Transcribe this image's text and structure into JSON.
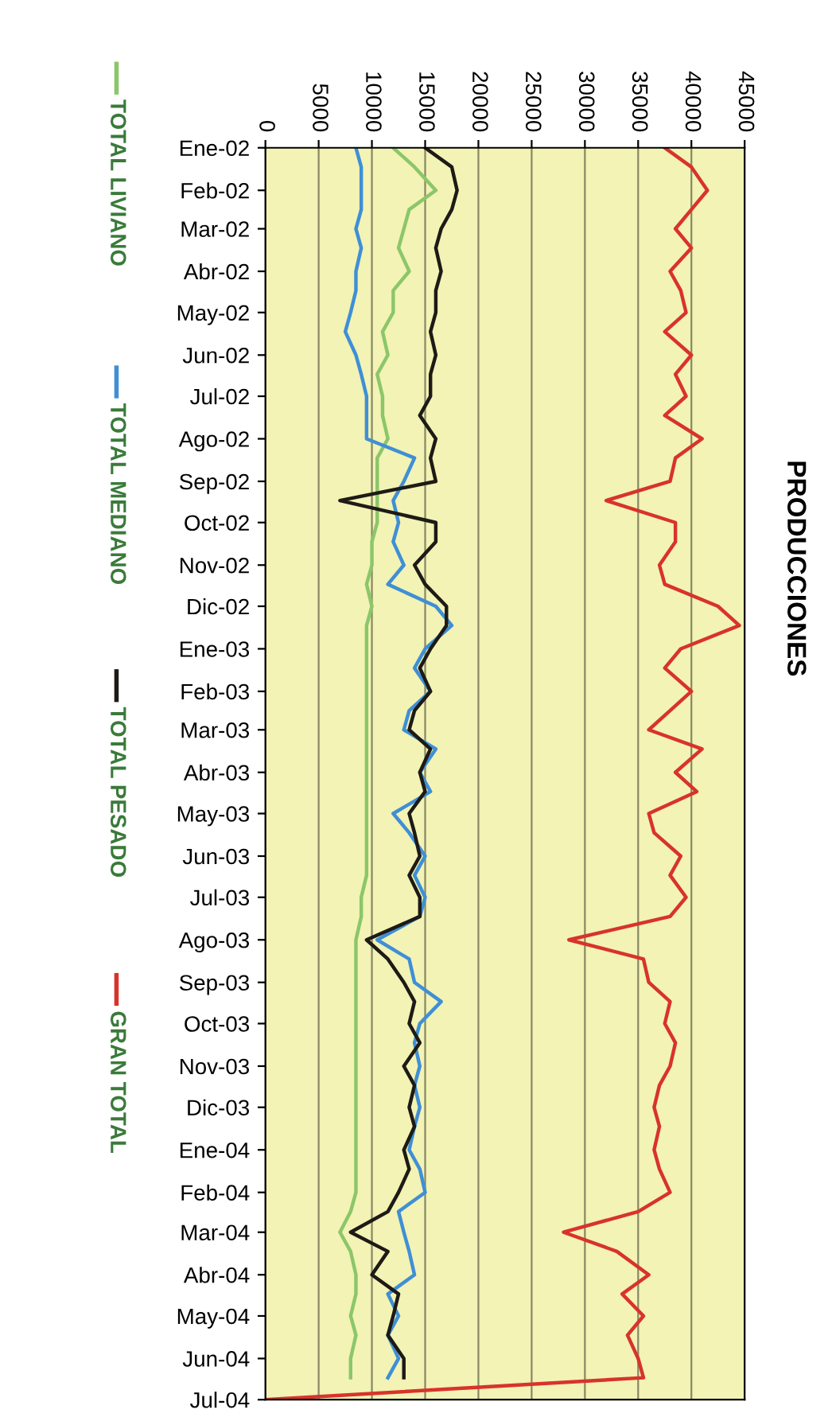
{
  "chart_data": {
    "type": "line",
    "title": "PRODUCCIONES",
    "orientation": "horizontal",
    "legend": "left",
    "grid": "x",
    "marker": "none",
    "line_style": "solid",
    "xlim": [
      0,
      45000
    ],
    "xticks": [
      0,
      5000,
      10000,
      15000,
      20000,
      25000,
      30000,
      35000,
      40000,
      45000
    ],
    "ylim": [
      "2004-07-01",
      "2002-01-01"
    ],
    "yticks": [
      {
        "value": "2002-01-01",
        "label": "Ene-02"
      },
      {
        "value": "2002-02-01",
        "label": "Feb-02"
      },
      {
        "value": "2002-03-01",
        "label": "Mar-02"
      },
      {
        "value": "2002-04-01",
        "label": "Abr-02"
      },
      {
        "value": "2002-05-01",
        "label": "May-02"
      },
      {
        "value": "2002-06-01",
        "label": "Jun-02"
      },
      {
        "value": "2002-07-01",
        "label": "Jul-02"
      },
      {
        "value": "2002-08-01",
        "label": "Ago-02"
      },
      {
        "value": "2002-09-01",
        "label": "Sep-02"
      },
      {
        "value": "2002-10-01",
        "label": "Oct-02"
      },
      {
        "value": "2002-11-01",
        "label": "Nov-02"
      },
      {
        "value": "2002-12-01",
        "label": "Dic-02"
      },
      {
        "value": "2003-01-01",
        "label": "Ene-03"
      },
      {
        "value": "2003-02-01",
        "label": "Feb-03"
      },
      {
        "value": "2003-03-01",
        "label": "Mar-03"
      },
      {
        "value": "2003-04-01",
        "label": "Abr-03"
      },
      {
        "value": "2003-05-01",
        "label": "May-03"
      },
      {
        "value": "2003-06-01",
        "label": "Jun-03"
      },
      {
        "value": "2003-07-01",
        "label": "Jul-03"
      },
      {
        "value": "2003-08-01",
        "label": "Ago-03"
      },
      {
        "value": "2003-09-01",
        "label": "Sep-03"
      },
      {
        "value": "2003-10-01",
        "label": "Oct-03"
      },
      {
        "value": "2003-11-01",
        "label": "Nov-03"
      },
      {
        "value": "2003-12-01",
        "label": "Dic-03"
      },
      {
        "value": "2004-01-01",
        "label": "Ene-04"
      },
      {
        "value": "2004-02-01",
        "label": "Feb-04"
      },
      {
        "value": "2004-03-01",
        "label": "Mar-04"
      },
      {
        "value": "2004-04-01",
        "label": "Abr-04"
      },
      {
        "value": "2004-05-01",
        "label": "May-04"
      },
      {
        "value": "2004-06-01",
        "label": "Jun-04"
      },
      {
        "value": "2004-07-01",
        "label": "Jul-04"
      }
    ],
    "x": [
      "2002-01-01",
      "2002-01-15",
      "2002-02-01",
      "2002-02-15",
      "2002-03-01",
      "2002-03-15",
      "2002-04-01",
      "2002-04-15",
      "2002-05-01",
      "2002-05-15",
      "2002-06-01",
      "2002-06-15",
      "2002-07-01",
      "2002-07-15",
      "2002-08-01",
      "2002-08-15",
      "2002-09-01",
      "2002-09-15",
      "2002-10-01",
      "2002-10-15",
      "2002-11-01",
      "2002-11-15",
      "2002-12-01",
      "2002-12-15",
      "2003-01-01",
      "2003-01-15",
      "2003-02-01",
      "2003-02-15",
      "2003-03-01",
      "2003-03-15",
      "2003-04-01",
      "2003-04-15",
      "2003-05-01",
      "2003-05-15",
      "2003-06-01",
      "2003-06-15",
      "2003-07-01",
      "2003-07-15",
      "2003-08-01",
      "2003-08-15",
      "2003-09-01",
      "2003-09-15",
      "2003-10-01",
      "2003-10-15",
      "2003-11-01",
      "2003-11-15",
      "2003-12-01",
      "2003-12-15",
      "2004-01-01",
      "2004-01-15",
      "2004-02-01",
      "2004-02-15",
      "2004-03-01",
      "2004-03-15",
      "2004-04-01",
      "2004-04-15",
      "2004-05-01",
      "2004-05-15",
      "2004-06-01",
      "2004-06-15",
      "2004-07-01"
    ],
    "series": [
      {
        "name": "TOTAL LIVIANO",
        "color": "#8cc66a",
        "values": [
          12000,
          14000,
          16000,
          13500,
          13000,
          12500,
          13500,
          12000,
          12000,
          11000,
          11500,
          10500,
          11000,
          11000,
          11500,
          10500,
          10500,
          10500,
          10500,
          10000,
          10000,
          9500,
          10000,
          9500,
          9500,
          9500,
          9500,
          9500,
          9500,
          9500,
          9500,
          9500,
          9500,
          9500,
          9500,
          9500,
          9000,
          9000,
          8500,
          8500,
          8500,
          8500,
          8500,
          8500,
          8500,
          8500,
          8500,
          8500,
          8500,
          8500,
          8500,
          8000,
          7000,
          8000,
          8500,
          8500,
          8000,
          8500,
          8000,
          8000,
          null
        ]
      },
      {
        "name": "TOTAL MEDIANO",
        "color": "#3f8fd6",
        "values": [
          8500,
          9000,
          9000,
          9000,
          8500,
          9000,
          8500,
          8500,
          8000,
          7500,
          8500,
          9000,
          9500,
          9500,
          9500,
          14000,
          13000,
          12000,
          12500,
          12000,
          13000,
          11500,
          16000,
          17500,
          15000,
          14000,
          15500,
          13500,
          13000,
          16000,
          14500,
          15500,
          12000,
          13500,
          15000,
          14000,
          15000,
          14500,
          10500,
          13500,
          14000,
          16500,
          14500,
          14000,
          14500,
          14000,
          14500,
          14000,
          13500,
          14500,
          15000,
          12500,
          13000,
          13500,
          14000,
          11500,
          12500,
          11500,
          12500,
          11500,
          null
        ]
      },
      {
        "name": "TOTAL PESADO",
        "color": "#1e1a16",
        "values": [
          15000,
          17500,
          18000,
          17500,
          16500,
          16000,
          16500,
          16000,
          16000,
          15500,
          16000,
          15500,
          15500,
          14500,
          16000,
          15500,
          16000,
          7000,
          16000,
          16000,
          14000,
          15000,
          17000,
          17000,
          15500,
          14500,
          15500,
          14000,
          13500,
          15500,
          14500,
          15000,
          13500,
          14000,
          14500,
          13500,
          14500,
          14500,
          9500,
          11500,
          13000,
          14000,
          13500,
          14500,
          13000,
          14000,
          13500,
          14000,
          13000,
          13500,
          12500,
          11500,
          8000,
          11500,
          10000,
          12500,
          12000,
          11500,
          13000,
          13000,
          null
        ]
      },
      {
        "name": "GRAN TOTAL",
        "color": "#d8332b",
        "values": [
          37500,
          40000,
          41500,
          40000,
          38500,
          40000,
          38000,
          39000,
          39500,
          37500,
          40000,
          38500,
          39500,
          37500,
          41000,
          38500,
          38000,
          32000,
          38500,
          38500,
          37000,
          37500,
          42500,
          44500,
          39000,
          37500,
          40000,
          38000,
          36000,
          41000,
          38500,
          40500,
          36000,
          36500,
          39000,
          38000,
          39500,
          38000,
          28500,
          35500,
          36000,
          38000,
          37500,
          38500,
          38000,
          37000,
          36500,
          37000,
          36500,
          37000,
          38000,
          35000,
          28000,
          33000,
          36000,
          33500,
          35500,
          34000,
          35000,
          35500,
          0
        ]
      }
    ]
  }
}
